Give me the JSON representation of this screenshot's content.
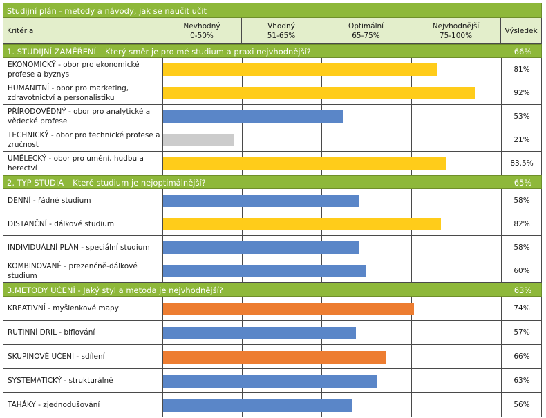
{
  "title": "Studijní plán - metody a návody, jak se naučit učit",
  "header": {
    "criteria": "Kritéria",
    "bands": [
      {
        "line1": "Nevhodný",
        "line2": "0-50%"
      },
      {
        "line1": "Vhodný",
        "line2": "51-65%"
      },
      {
        "line1": "Optimální",
        "line2": "65-75%"
      },
      {
        "line1": "Nejvhodnější",
        "line2": "75-100%"
      }
    ],
    "result": "Výsledek"
  },
  "colors": {
    "accent": "#8eb83a",
    "header_bg": "#e3eecb",
    "yellow": "#ffcc1a",
    "blue": "#5a86c8",
    "gray": "#cccccc",
    "orange": "#ed7d31"
  },
  "chart_data": {
    "type": "bar",
    "orientation": "horizontal",
    "xlim": [
      0,
      100
    ],
    "sections": [
      {
        "title": "1. STUDIJNÍ ZAMĚŘENÍ – Který směr je pro mé studium a praxi nejvhodnější?",
        "result": "66%",
        "rows": [
          {
            "label": "EKONOMICKÝ - obor pro ekonomické profese a byznys",
            "value": 81,
            "result": "81%",
            "color": "#ffcc1a"
          },
          {
            "label": "HUMANITNÍ - obor pro marketing, zdravotnictví a personalistiku",
            "value": 92,
            "result": "92%",
            "color": "#ffcc1a"
          },
          {
            "label": "PŘÍRODOVĚDNÝ - obor pro analytické a vědecké profese",
            "value": 53,
            "result": "53%",
            "color": "#5a86c8"
          },
          {
            "label": "TECHNICKÝ - obor pro technické profese a zručnost",
            "value": 21,
            "result": "21%",
            "color": "#cccccc"
          },
          {
            "label": "UMĚLECKÝ - obor pro umění, hudbu a herectví",
            "value": 83.5,
            "result": "83.5%",
            "color": "#ffcc1a"
          }
        ]
      },
      {
        "title": "2. TYP STUDIA – Které studium je nejoptimálnější?",
        "result": "65%",
        "rows": [
          {
            "label": "DENNÍ - řádné studium",
            "value": 58,
            "result": "58%",
            "color": "#5a86c8"
          },
          {
            "label": "DISTANČNÍ - dálkové studium",
            "value": 82,
            "result": "82%",
            "color": "#ffcc1a"
          },
          {
            "label": "INDIVIDUÁLNÍ PLÁN - speciální studium",
            "value": 58,
            "result": "58%",
            "color": "#5a86c8"
          },
          {
            "label": "KOMBINOVANÉ - prezenčně-dálkové studium",
            "value": 60,
            "result": "60%",
            "color": "#5a86c8"
          }
        ]
      },
      {
        "title": "3.METODY UČENÍ - Jaký styl a metoda je nejvhodnější?",
        "result": "63%",
        "rows": [
          {
            "label": "KREATIVNÍ - myšlenkové mapy",
            "value": 74,
            "result": "74%",
            "color": "#ed7d31"
          },
          {
            "label": "RUTINNÍ DRIL - biflování",
            "value": 57,
            "result": "57%",
            "color": "#5a86c8"
          },
          {
            "label": "SKUPINOVÉ UČENÍ - sdílení",
            "value": 66,
            "result": "66%",
            "color": "#ed7d31"
          },
          {
            "label": "SYSTEMATICKÝ - strukturálně",
            "value": 63,
            "result": "63%",
            "color": "#5a86c8"
          },
          {
            "label": "TAHÁKY - zjednodušování",
            "value": 56,
            "result": "56%",
            "color": "#5a86c8"
          }
        ]
      }
    ]
  }
}
